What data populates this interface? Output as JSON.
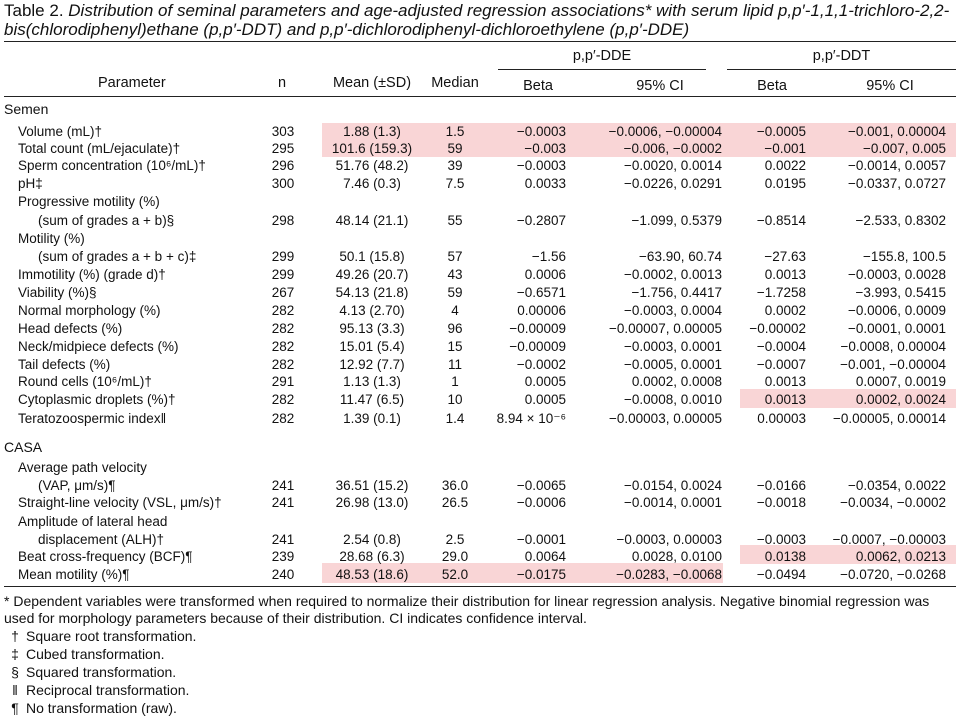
{
  "title": {
    "lead": "Table 2.",
    "text": "Distribution of seminal parameters and age-adjusted regression associations* with serum lipid p,p′-1,1,1-trichloro-2,2-bis(chlorodiphenyl)ethane (p,p′-DDT) and p,p′-dichlorodiphenyl-dichloroethylene (p,p′-DDE)"
  },
  "header": {
    "parameter": "Parameter",
    "n": "n",
    "mean": "Mean (±SD)",
    "median": "Median",
    "group_dde": "p,p′-DDE",
    "group_ddt": "p,p′-DDT",
    "beta_dde": "Beta",
    "ci_dde": "95% CI",
    "beta_ddt": "Beta",
    "ci_ddt": "95% CI"
  },
  "sections": {
    "semen": "Semen",
    "casa": "CASA"
  },
  "rows": [
    {
      "param": "Volume (mL)†",
      "n": "303",
      "mean": "1.88 (1.3)",
      "median": "1.5",
      "b1": "−0.0003",
      "ci1": "−0.0006, −0.00004",
      "b2": "−0.0005",
      "ci2": "−0.001, 0.00004"
    },
    {
      "param": "Total count (mL/ejaculate)†",
      "n": "295",
      "mean": "101.6 (159.3)",
      "median": "59",
      "b1": "−0.003",
      "ci1": "−0.006, −0.0002",
      "b2": "−0.001",
      "ci2": "−0.007, 0.005"
    },
    {
      "param": "Sperm concentration (10⁶/mL)†",
      "n": "296",
      "mean": "51.76 (48.2)",
      "median": "39",
      "b1": "−0.0003",
      "ci1": "−0.0020, 0.0014",
      "b2": "0.0022",
      "ci2": "−0.0014, 0.0057"
    },
    {
      "param": "pH‡",
      "n": "300",
      "mean": "7.46 (0.3)",
      "median": "7.5",
      "b1": "0.0033",
      "ci1": "−0.0226, 0.0291",
      "b2": "0.0195",
      "ci2": "−0.0337, 0.0727"
    },
    {
      "param": "Progressive motility (%)",
      "n": "",
      "mean": "",
      "median": "",
      "b1": "",
      "ci1": "",
      "b2": "",
      "ci2": ""
    },
    {
      "param": "(sum of grades a + b)§",
      "n": "298",
      "mean": "48.14 (21.1)",
      "median": "55",
      "b1": "−0.2807",
      "ci1": "−1.099, 0.5379",
      "b2": "−0.8514",
      "ci2": "−2.533, 0.8302"
    },
    {
      "param": "Motility (%)",
      "n": "",
      "mean": "",
      "median": "",
      "b1": "",
      "ci1": "",
      "b2": "",
      "ci2": ""
    },
    {
      "param": "(sum of grades a + b + c)‡",
      "n": "299",
      "mean": "50.1 (15.8)",
      "median": "57",
      "b1": "−1.56",
      "ci1": "−63.90, 60.74",
      "b2": "−27.63",
      "ci2": "−155.8, 100.5"
    },
    {
      "param": "Immotility (%) (grade d)†",
      "n": "299",
      "mean": "49.26 (20.7)",
      "median": "43",
      "b1": "0.0006",
      "ci1": "−0.0002, 0.0013",
      "b2": "0.0013",
      "ci2": "−0.0003, 0.0028"
    },
    {
      "param": "Viability (%)§",
      "n": "267",
      "mean": "54.13 (21.8)",
      "median": "59",
      "b1": "−0.6571",
      "ci1": "−1.756, 0.4417",
      "b2": "−1.7258",
      "ci2": "−3.993, 0.5415"
    },
    {
      "param": "Normal morphology (%)",
      "n": "282",
      "mean": "4.13 (2.70)",
      "median": "4",
      "b1": "0.00006",
      "ci1": "−0.0003, 0.0004",
      "b2": "0.0002",
      "ci2": "−0.0006, 0.0009"
    },
    {
      "param": "Head defects (%)",
      "n": "282",
      "mean": "95.13 (3.3)",
      "median": "96",
      "b1": "−0.00009",
      "ci1": "−0.00007, 0.00005",
      "b2": "−0.00002",
      "ci2": "−0.0001, 0.0001"
    },
    {
      "param": "Neck/midpiece defects (%)",
      "n": "282",
      "mean": "15.01 (5.4)",
      "median": "15",
      "b1": "−0.00009",
      "ci1": "−0.0003, 0.0001",
      "b2": "−0.0004",
      "ci2": "−0.0008, 0.00004"
    },
    {
      "param": "Tail defects (%)",
      "n": "282",
      "mean": "12.92 (7.7)",
      "median": "11",
      "b1": "−0.0002",
      "ci1": "−0.0005, 0.0001",
      "b2": "−0.0007",
      "ci2": "−0.001, −0.00004"
    },
    {
      "param": "Round cells (10⁶/mL)†",
      "n": "291",
      "mean": "1.13 (1.3)",
      "median": "1",
      "b1": "0.0005",
      "ci1": "0.0002, 0.0008",
      "b2": "0.0013",
      "ci2": "0.0007, 0.0019"
    },
    {
      "param": "Cytoplasmic droplets (%)†",
      "n": "282",
      "mean": "11.47 (6.5)",
      "median": "10",
      "b1": "0.0005",
      "ci1": "−0.0008, 0.0010",
      "b2": "0.0013",
      "ci2": "0.0002, 0.0024"
    },
    {
      "param": "Teratozoospermic index‖",
      "n": "282",
      "mean": "1.39 (0.1)",
      "median": "1.4",
      "b1": "8.94 × 10⁻⁶",
      "ci1": "−0.00003, 0.00005",
      "b2": "0.00003",
      "ci2": "−0.00005, 0.00014"
    },
    {
      "param": "Average path velocity",
      "n": "",
      "mean": "",
      "median": "",
      "b1": "",
      "ci1": "",
      "b2": "",
      "ci2": ""
    },
    {
      "param": "(VAP, μm/s)¶",
      "n": "241",
      "mean": "36.51 (15.2)",
      "median": "36.0",
      "b1": "−0.0065",
      "ci1": "−0.0154, 0.0024",
      "b2": "−0.0166",
      "ci2": "−0.0354, 0.0022"
    },
    {
      "param": "Straight-line velocity (VSL, μm/s)†",
      "n": "241",
      "mean": "26.98 (13.0)",
      "median": "26.5",
      "b1": "−0.0006",
      "ci1": "−0.0014, 0.0001",
      "b2": "−0.0018",
      "ci2": "−0.0034, −0.0002"
    },
    {
      "param": "Amplitude of lateral head",
      "n": "",
      "mean": "",
      "median": "",
      "b1": "",
      "ci1": "",
      "b2": "",
      "ci2": ""
    },
    {
      "param": "displacement (ALH)†",
      "n": "241",
      "mean": "2.54 (0.8)",
      "median": "2.5",
      "b1": "−0.0001",
      "ci1": "−0.0003, 0.00003",
      "b2": "−0.0003",
      "ci2": "−0.0007, −0.00003"
    },
    {
      "param": "Beat cross-frequency (BCF)¶",
      "n": "239",
      "mean": "28.68 (6.3)",
      "median": "29.0",
      "b1": "0.0064",
      "ci1": "0.0028, 0.0100",
      "b2": "0.0138",
      "ci2": "0.0062, 0.0213"
    },
    {
      "param": "Mean motility (%)¶",
      "n": "240",
      "mean": "48.53 (18.6)",
      "median": "52.0",
      "b1": "−0.0175",
      "ci1": "−0.0283, −0.0068",
      "b2": "−0.0494",
      "ci2": "−0.0720, −0.0268"
    }
  ],
  "highlight_color": "#f9d5d6",
  "footnotes": {
    "main": "* Dependent variables were transformed when required to normalize their distribution for linear regression analysis. Negative binomial regression was used for morphology parameters because of their distribution. CI indicates confidence interval.",
    "items": [
      {
        "sym": "†",
        "text": "Square root transformation."
      },
      {
        "sym": "‡",
        "text": "Cubed transformation."
      },
      {
        "sym": "§",
        "text": "Squared transformation."
      },
      {
        "sym": "‖",
        "text": "Reciprocal transformation."
      },
      {
        "sym": "¶",
        "text": "No transformation (raw)."
      }
    ]
  }
}
